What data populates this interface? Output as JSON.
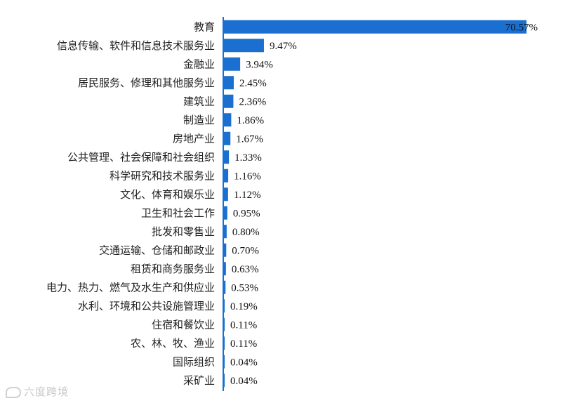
{
  "chart_data": {
    "type": "bar",
    "orientation": "horizontal",
    "categories": [
      "教育",
      "信息传输、软件和信息技术服务业",
      "金融业",
      "居民服务、修理和其他服务业",
      "建筑业",
      "制造业",
      "房地产业",
      "公共管理、社会保障和社会组织",
      "科学研究和技术服务业",
      "文化、体育和娱乐业",
      "卫生和社会工作",
      "批发和零售业",
      "交通运输、仓储和邮政业",
      "租赁和商务服务业",
      "电力、热力、燃气及水生产和供应业",
      "水利、环境和公共设施管理业",
      "住宿和餐饮业",
      "农、林、牧、渔业",
      "国际组织",
      "采矿业"
    ],
    "values": [
      70.57,
      9.47,
      3.94,
      2.45,
      2.36,
      1.86,
      1.67,
      1.33,
      1.16,
      1.12,
      0.95,
      0.8,
      0.7,
      0.63,
      0.53,
      0.19,
      0.11,
      0.11,
      0.04,
      0.04
    ],
    "value_labels": [
      "70.57%",
      "9.47%",
      "3.94%",
      "2.45%",
      "2.36%",
      "1.86%",
      "1.67%",
      "1.33%",
      "1.16%",
      "1.12%",
      "0.95%",
      "0.80%",
      "0.70%",
      "0.63%",
      "0.53%",
      "0.19%",
      "0.11%",
      "0.11%",
      "0.04%",
      "0.04%"
    ],
    "title": "",
    "xlabel": "",
    "ylabel": "",
    "xlim": [
      0,
      70.57
    ],
    "grid": false,
    "legend": "none",
    "bar_color": "#1a6fd0",
    "axis_color": "#1a6fd0"
  },
  "watermark": "六度跨境"
}
